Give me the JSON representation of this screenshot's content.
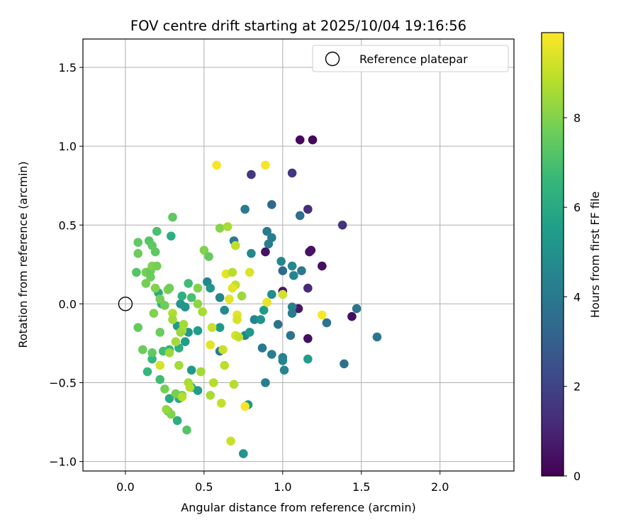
{
  "chart_data": {
    "type": "scatter",
    "title": "FOV centre drift starting at 2025/10/04 19:16:56",
    "xlabel": "Angular distance from reference (arcmin)",
    "ylabel": "Rotation from reference (arcmin)",
    "xlim": [
      -0.27,
      2.47
    ],
    "ylim": [
      -1.06,
      1.68
    ],
    "xticks": [
      0.0,
      0.5,
      1.0,
      1.5,
      2.0
    ],
    "xtick_labels": [
      "0.0",
      "0.5",
      "1.0",
      "1.5",
      "2.0"
    ],
    "yticks": [
      -1.0,
      -0.5,
      0.0,
      0.5,
      1.0,
      1.5
    ],
    "ytick_labels": [
      "−1.0",
      "−0.5",
      "0.0",
      "0.5",
      "1.0",
      "1.5"
    ],
    "grid": true,
    "legend": {
      "location": "top-right",
      "entries": [
        {
          "label": "Reference platepar",
          "marker": "open-circle"
        }
      ]
    },
    "reference": {
      "x": 0.0,
      "y": 0.0
    },
    "colorbar": {
      "label": "Hours from first FF file",
      "range": [
        0,
        9.9
      ],
      "ticks": [
        0,
        2,
        4,
        6,
        8
      ],
      "tick_labels": [
        "0",
        "2",
        "4",
        "6",
        "8"
      ],
      "colormap": "viridis",
      "colors": [
        "#440154",
        "#482878",
        "#3e4989",
        "#31688e",
        "#26828e",
        "#1f9e89",
        "#35b779",
        "#6ece58",
        "#b5de2b",
        "#fde725"
      ]
    },
    "points": [
      {
        "x": 1.11,
        "y": 1.04,
        "h": 0.2
      },
      {
        "x": 1.19,
        "y": 1.04,
        "h": 0.2
      },
      {
        "x": 1.18,
        "y": 0.34,
        "h": 0.4
      },
      {
        "x": 1.17,
        "y": 0.33,
        "h": 0.5
      },
      {
        "x": 0.89,
        "y": 0.33,
        "h": 0.5
      },
      {
        "x": 1.25,
        "y": 0.24,
        "h": 0.4
      },
      {
        "x": 1.0,
        "y": 0.08,
        "h": 0.6
      },
      {
        "x": 1.1,
        "y": -0.03,
        "h": 0.6
      },
      {
        "x": 1.44,
        "y": -0.08,
        "h": 0.4
      },
      {
        "x": 1.16,
        "y": -0.22,
        "h": 0.4
      },
      {
        "x": 1.16,
        "y": 0.6,
        "h": 1.3
      },
      {
        "x": 1.38,
        "y": 0.5,
        "h": 1.5
      },
      {
        "x": 0.8,
        "y": 0.82,
        "h": 1.6
      },
      {
        "x": 1.06,
        "y": 0.83,
        "h": 1.6
      },
      {
        "x": 1.16,
        "y": 0.1,
        "h": 1.2
      },
      {
        "x": 0.93,
        "y": 0.63,
        "h": 3.3
      },
      {
        "x": 1.11,
        "y": 0.56,
        "h": 3.6
      },
      {
        "x": 0.76,
        "y": 0.6,
        "h": 4.1
      },
      {
        "x": 0.69,
        "y": 0.4,
        "h": 4.0
      },
      {
        "x": 0.9,
        "y": 0.46,
        "h": 4.0
      },
      {
        "x": 0.93,
        "y": 0.42,
        "h": 4.2
      },
      {
        "x": 0.91,
        "y": 0.38,
        "h": 4.1
      },
      {
        "x": 0.8,
        "y": 0.32,
        "h": 4.6
      },
      {
        "x": 0.99,
        "y": 0.27,
        "h": 4.6
      },
      {
        "x": 1.0,
        "y": 0.21,
        "h": 3.3
      },
      {
        "x": 1.06,
        "y": 0.24,
        "h": 4.6
      },
      {
        "x": 1.12,
        "y": 0.21,
        "h": 4.0
      },
      {
        "x": 1.07,
        "y": 0.18,
        "h": 4.5
      },
      {
        "x": 0.93,
        "y": 0.06,
        "h": 4.8
      },
      {
        "x": 1.06,
        "y": -0.02,
        "h": 4.4
      },
      {
        "x": 1.06,
        "y": -0.06,
        "h": 4.1
      },
      {
        "x": 0.97,
        "y": -0.13,
        "h": 3.8
      },
      {
        "x": 1.05,
        "y": -0.2,
        "h": 3.8
      },
      {
        "x": 1.28,
        "y": -0.12,
        "h": 3.8
      },
      {
        "x": 1.47,
        "y": -0.03,
        "h": 3.8
      },
      {
        "x": 1.6,
        "y": -0.21,
        "h": 3.9
      },
      {
        "x": 1.39,
        "y": -0.38,
        "h": 3.6
      },
      {
        "x": 0.87,
        "y": -0.28,
        "h": 4.0
      },
      {
        "x": 0.93,
        "y": -0.32,
        "h": 4.2
      },
      {
        "x": 1.0,
        "y": -0.34,
        "h": 4.4
      },
      {
        "x": 1.0,
        "y": -0.36,
        "h": 4.5
      },
      {
        "x": 1.01,
        "y": -0.42,
        "h": 4.6
      },
      {
        "x": 0.89,
        "y": -0.5,
        "h": 4.3
      },
      {
        "x": 0.82,
        "y": -0.1,
        "h": 4.5
      },
      {
        "x": 0.76,
        "y": -0.2,
        "h": 4.5
      },
      {
        "x": 0.63,
        "y": -0.04,
        "h": 4.7
      },
      {
        "x": 0.6,
        "y": 0.04,
        "h": 4.5
      },
      {
        "x": 0.52,
        "y": 0.14,
        "h": 4.6
      },
      {
        "x": 0.6,
        "y": -0.3,
        "h": 4.2
      },
      {
        "x": 0.88,
        "y": -0.04,
        "h": 5.4
      },
      {
        "x": 0.86,
        "y": -0.1,
        "h": 5.1
      },
      {
        "x": 0.79,
        "y": -0.18,
        "h": 5.3
      },
      {
        "x": 0.78,
        "y": -0.64,
        "h": 5.3
      },
      {
        "x": 0.75,
        "y": -0.95,
        "h": 5.1
      },
      {
        "x": 1.16,
        "y": -0.35,
        "h": 5.5
      },
      {
        "x": 0.6,
        "y": -0.15,
        "h": 5.4
      },
      {
        "x": 0.54,
        "y": 0.1,
        "h": 5.2
      },
      {
        "x": 0.35,
        "y": 0.0,
        "h": 5.2
      },
      {
        "x": 0.38,
        "y": -0.02,
        "h": 5.2
      },
      {
        "x": 0.4,
        "y": -0.18,
        "h": 5.3
      },
      {
        "x": 0.38,
        "y": -0.24,
        "h": 5.5
      },
      {
        "x": 0.46,
        "y": -0.17,
        "h": 5.5
      },
      {
        "x": 0.33,
        "y": -0.14,
        "h": 5.4
      },
      {
        "x": 0.42,
        "y": -0.42,
        "h": 5.3
      },
      {
        "x": 0.42,
        "y": -0.53,
        "h": 5.8
      },
      {
        "x": 0.46,
        "y": -0.55,
        "h": 5.5
      },
      {
        "x": 0.28,
        "y": -0.6,
        "h": 6.0
      },
      {
        "x": 0.34,
        "y": -0.6,
        "h": 6.0
      },
      {
        "x": 0.33,
        "y": -0.74,
        "h": 6.2
      },
      {
        "x": 0.29,
        "y": 0.43,
        "h": 6.2
      },
      {
        "x": 0.21,
        "y": 0.07,
        "h": 6.1
      },
      {
        "x": 0.23,
        "y": 0.0,
        "h": 6.4
      },
      {
        "x": 0.36,
        "y": 0.05,
        "h": 6.3
      },
      {
        "x": 0.4,
        "y": 0.13,
        "h": 6.8
      },
      {
        "x": 0.42,
        "y": 0.04,
        "h": 7.0
      },
      {
        "x": 0.34,
        "y": -0.28,
        "h": 6.2
      },
      {
        "x": 0.28,
        "y": -0.29,
        "h": 6.5
      },
      {
        "x": 0.24,
        "y": -0.3,
        "h": 6.8
      },
      {
        "x": 0.17,
        "y": -0.35,
        "h": 6.6
      },
      {
        "x": 0.14,
        "y": -0.43,
        "h": 6.6
      },
      {
        "x": 0.22,
        "y": -0.48,
        "h": 6.8
      },
      {
        "x": 0.27,
        "y": -0.68,
        "h": 7.0
      },
      {
        "x": 0.39,
        "y": -0.8,
        "h": 7.2
      },
      {
        "x": 0.3,
        "y": 0.55,
        "h": 7.4
      },
      {
        "x": 0.2,
        "y": 0.46,
        "h": 7.0
      },
      {
        "x": 0.15,
        "y": 0.4,
        "h": 7.2
      },
      {
        "x": 0.17,
        "y": 0.37,
        "h": 7.4
      },
      {
        "x": 0.08,
        "y": 0.39,
        "h": 7.4
      },
      {
        "x": 0.08,
        "y": 0.32,
        "h": 7.6
      },
      {
        "x": 0.19,
        "y": 0.33,
        "h": 7.4
      },
      {
        "x": 0.07,
        "y": 0.2,
        "h": 7.2
      },
      {
        "x": 0.13,
        "y": 0.2,
        "h": 7.8
      },
      {
        "x": 0.16,
        "y": 0.21,
        "h": 7.5
      },
      {
        "x": 0.17,
        "y": 0.24,
        "h": 8.0
      },
      {
        "x": 0.2,
        "y": 0.24,
        "h": 7.8
      },
      {
        "x": 0.16,
        "y": 0.17,
        "h": 7.6
      },
      {
        "x": 0.13,
        "y": 0.13,
        "h": 7.8
      },
      {
        "x": 0.19,
        "y": 0.1,
        "h": 8.0
      },
      {
        "x": 0.22,
        "y": 0.03,
        "h": 7.8
      },
      {
        "x": 0.27,
        "y": 0.09,
        "h": 7.9
      },
      {
        "x": 0.28,
        "y": 0.1,
        "h": 7.7
      },
      {
        "x": 0.25,
        "y": -0.01,
        "h": 7.7
      },
      {
        "x": 0.18,
        "y": -0.06,
        "h": 8.0
      },
      {
        "x": 0.08,
        "y": -0.15,
        "h": 7.5
      },
      {
        "x": 0.22,
        "y": -0.18,
        "h": 7.6
      },
      {
        "x": 0.11,
        "y": -0.29,
        "h": 7.6
      },
      {
        "x": 0.17,
        "y": -0.31,
        "h": 7.4
      },
      {
        "x": 0.25,
        "y": -0.54,
        "h": 7.8
      },
      {
        "x": 0.32,
        "y": -0.57,
        "h": 7.8
      },
      {
        "x": 0.36,
        "y": -0.58,
        "h": 7.7
      },
      {
        "x": 0.29,
        "y": -0.7,
        "h": 8.0
      },
      {
        "x": 0.26,
        "y": -0.67,
        "h": 8.3
      },
      {
        "x": 0.5,
        "y": 0.34,
        "h": 8.0
      },
      {
        "x": 0.53,
        "y": 0.3,
        "h": 7.5
      },
      {
        "x": 0.46,
        "y": 0.1,
        "h": 8.0
      },
      {
        "x": 0.6,
        "y": 0.48,
        "h": 8.1
      },
      {
        "x": 0.65,
        "y": 0.49,
        "h": 8.6
      },
      {
        "x": 0.7,
        "y": 0.37,
        "h": 8.9
      },
      {
        "x": 0.74,
        "y": 0.05,
        "h": 8.4
      },
      {
        "x": 0.64,
        "y": 0.19,
        "h": 9.5
      },
      {
        "x": 0.68,
        "y": 0.2,
        "h": 8.8
      },
      {
        "x": 0.7,
        "y": 0.12,
        "h": 9.0
      },
      {
        "x": 0.68,
        "y": 0.1,
        "h": 9.5
      },
      {
        "x": 0.66,
        "y": 0.03,
        "h": 9.5
      },
      {
        "x": 0.58,
        "y": 0.88,
        "h": 9.8
      },
      {
        "x": 0.89,
        "y": 0.88,
        "h": 9.8
      },
      {
        "x": 0.79,
        "y": 0.2,
        "h": 9.4
      },
      {
        "x": 1.0,
        "y": 0.06,
        "h": 9.2
      },
      {
        "x": 0.9,
        "y": 0.01,
        "h": 9.6
      },
      {
        "x": 1.25,
        "y": -0.07,
        "h": 9.8
      },
      {
        "x": 0.71,
        "y": -0.07,
        "h": 9.5
      },
      {
        "x": 0.71,
        "y": -0.1,
        "h": 9.3
      },
      {
        "x": 0.7,
        "y": -0.2,
        "h": 9.3
      },
      {
        "x": 0.72,
        "y": -0.21,
        "h": 9.0
      },
      {
        "x": 0.55,
        "y": -0.15,
        "h": 9.1
      },
      {
        "x": 0.54,
        "y": -0.26,
        "h": 9.5
      },
      {
        "x": 0.62,
        "y": -0.29,
        "h": 9.1
      },
      {
        "x": 0.63,
        "y": -0.39,
        "h": 8.9
      },
      {
        "x": 0.56,
        "y": -0.5,
        "h": 8.8
      },
      {
        "x": 0.54,
        "y": -0.58,
        "h": 8.6
      },
      {
        "x": 0.61,
        "y": -0.63,
        "h": 9.0
      },
      {
        "x": 0.69,
        "y": -0.51,
        "h": 8.8
      },
      {
        "x": 0.67,
        "y": -0.87,
        "h": 9.1
      },
      {
        "x": 0.76,
        "y": -0.65,
        "h": 9.8
      },
      {
        "x": 0.49,
        "y": -0.05,
        "h": 8.6
      },
      {
        "x": 0.46,
        "y": 0.0,
        "h": 8.2
      },
      {
        "x": 0.3,
        "y": -0.06,
        "h": 8.7
      },
      {
        "x": 0.3,
        "y": -0.1,
        "h": 8.5
      },
      {
        "x": 0.37,
        "y": -0.13,
        "h": 8.5
      },
      {
        "x": 0.36,
        "y": -0.17,
        "h": 8.7
      },
      {
        "x": 0.35,
        "y": -0.18,
        "h": 8.4
      },
      {
        "x": 0.32,
        "y": -0.24,
        "h": 8.5
      },
      {
        "x": 0.28,
        "y": -0.31,
        "h": 8.4
      },
      {
        "x": 0.22,
        "y": -0.39,
        "h": 9.3
      },
      {
        "x": 0.34,
        "y": -0.39,
        "h": 8.5
      },
      {
        "x": 0.4,
        "y": -0.5,
        "h": 8.6
      },
      {
        "x": 0.41,
        "y": -0.53,
        "h": 8.8
      },
      {
        "x": 0.48,
        "y": -0.43,
        "h": 8.5
      },
      {
        "x": 0.36,
        "y": -0.59,
        "h": 8.8
      }
    ]
  }
}
